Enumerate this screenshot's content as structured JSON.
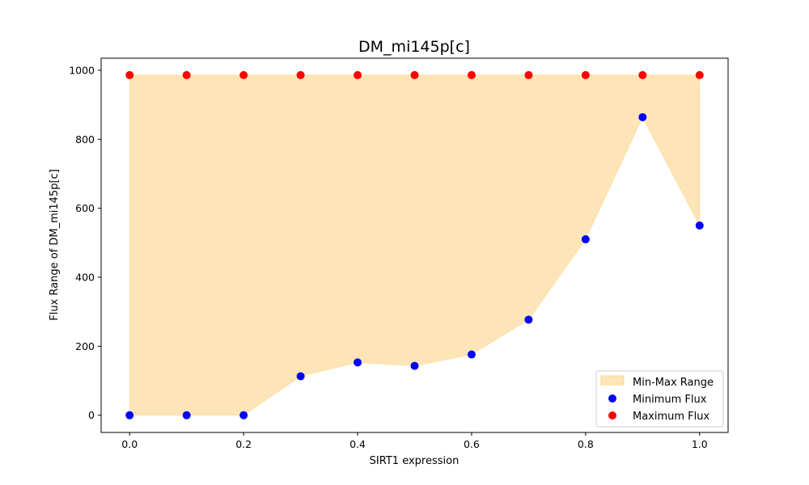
{
  "chart_data": {
    "type": "scatter",
    "title": "DM_mi145p[c]",
    "xlabel": "SIRT1 expression",
    "ylabel": "Flux Range of DM_mi145p[c]",
    "xlim": [
      -0.05,
      1.05
    ],
    "ylim": [
      -50,
      1035
    ],
    "xticks": [
      0.0,
      0.2,
      0.4,
      0.6,
      0.8,
      1.0
    ],
    "xtick_labels": [
      "0.0",
      "0.2",
      "0.4",
      "0.6",
      "0.8",
      "1.0"
    ],
    "yticks": [
      0,
      200,
      400,
      600,
      800,
      1000
    ],
    "ytick_labels": [
      "0",
      "200",
      "400",
      "600",
      "800",
      "1000"
    ],
    "x": [
      0.0,
      0.1,
      0.2,
      0.3,
      0.4,
      0.5,
      0.6,
      0.7,
      0.8,
      0.9,
      1.0
    ],
    "series": [
      {
        "name": "Minimum Flux",
        "color": "#0000ff",
        "values": [
          0,
          0,
          0,
          113,
          153,
          143,
          176,
          277,
          510,
          864,
          550
        ]
      },
      {
        "name": "Maximum Flux",
        "color": "#ff0000",
        "values": [
          986,
          986,
          986,
          986,
          986,
          986,
          986,
          986,
          986,
          986,
          986
        ]
      }
    ],
    "fill": {
      "name": "Min-Max Range",
      "color": "#fdd58a",
      "opacity": 0.62
    },
    "grid": false,
    "legend_position": "lower-right"
  }
}
